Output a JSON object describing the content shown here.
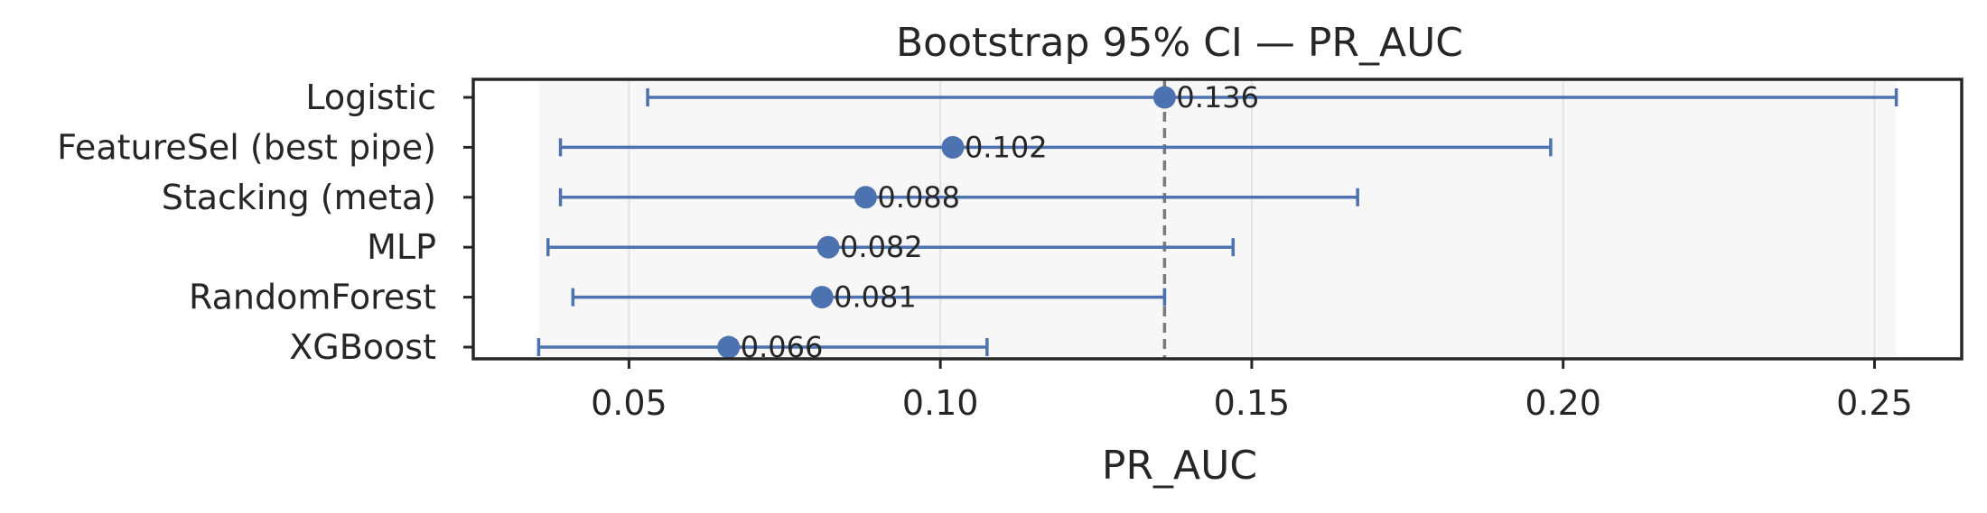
{
  "chart_data": {
    "type": "scatter",
    "title": "Bootstrap 95% CI — PR_AUC",
    "xlabel": "PR_AUC",
    "ylabel": "",
    "xlim": [
      0.025,
      0.264
    ],
    "xticks": [
      0.05,
      0.1,
      0.15,
      0.2,
      0.25
    ],
    "xtick_labels": [
      "0.05",
      "0.10",
      "0.15",
      "0.20",
      "0.25"
    ],
    "grid": "vertical",
    "shaded_range": [
      0.0355,
      0.2535
    ],
    "reference_line": 0.136,
    "color": "#4c72b0",
    "categories": [
      "Logistic",
      "FeatureSel (best pipe)",
      "Stacking (meta)",
      "MLP",
      "RandomForest",
      "XGBoost"
    ],
    "points": [
      {
        "label": "Logistic",
        "value": 0.136,
        "ci_low": 0.053,
        "ci_high": 0.2535,
        "value_label": "0.136"
      },
      {
        "label": "FeatureSel (best pipe)",
        "value": 0.102,
        "ci_low": 0.039,
        "ci_high": 0.198,
        "value_label": "0.102"
      },
      {
        "label": "Stacking (meta)",
        "value": 0.088,
        "ci_low": 0.039,
        "ci_high": 0.167,
        "value_label": "0.088"
      },
      {
        "label": "MLP",
        "value": 0.082,
        "ci_low": 0.037,
        "ci_high": 0.147,
        "value_label": "0.082"
      },
      {
        "label": "RandomForest",
        "value": 0.081,
        "ci_low": 0.041,
        "ci_high": 0.136,
        "value_label": "0.081"
      },
      {
        "label": "XGBoost",
        "value": 0.066,
        "ci_low": 0.0355,
        "ci_high": 0.1075,
        "value_label": "0.066"
      }
    ]
  }
}
